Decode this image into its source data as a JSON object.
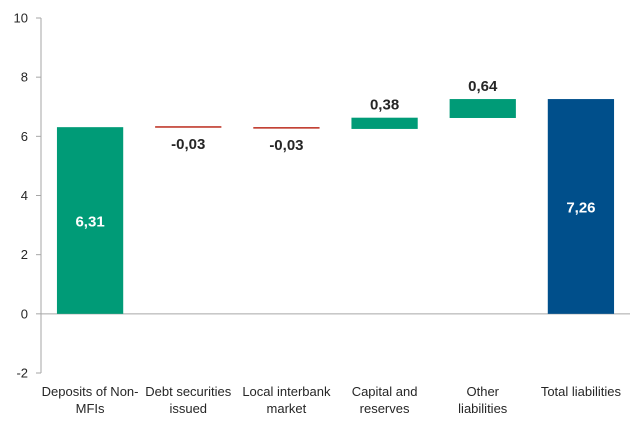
{
  "chart_data": {
    "type": "bar",
    "subtype": "waterfall",
    "categories": [
      [
        "Deposits of Non-",
        "MFIs"
      ],
      [
        "Debt securities",
        "issued"
      ],
      [
        "Local interbank",
        "market"
      ],
      [
        "Capital and",
        "reserves"
      ],
      [
        "Other",
        "liabilities"
      ],
      [
        "Total liabilities"
      ]
    ],
    "bars": [
      {
        "kind": "total",
        "base": 0,
        "value": 6.31,
        "label": "6,31",
        "color": "#009B77",
        "label_position": "inside"
      },
      {
        "kind": "change",
        "base": 6.31,
        "value": -0.03,
        "label": "-0,03",
        "color": "#C0392B",
        "label_position": "below"
      },
      {
        "kind": "change",
        "base": 6.28,
        "value": -0.03,
        "label": "-0,03",
        "color": "#C0392B",
        "label_position": "below"
      },
      {
        "kind": "change",
        "base": 6.25,
        "value": 0.38,
        "label": "0,38",
        "color": "#009B77",
        "label_position": "above"
      },
      {
        "kind": "change",
        "base": 6.62,
        "value": 0.64,
        "label": "0,64",
        "color": "#009B77",
        "label_position": "above"
      },
      {
        "kind": "total",
        "base": 0,
        "value": 7.26,
        "label": "7,26",
        "color": "#004F8B",
        "label_position": "inside"
      }
    ],
    "y_ticks": [
      {
        "value": -2,
        "label": "-2"
      },
      {
        "value": 0,
        "label": "0"
      },
      {
        "value": 2,
        "label": "2"
      },
      {
        "value": 4,
        "label": "4"
      },
      {
        "value": 6,
        "label": "6"
      },
      {
        "value": 8,
        "label": "8"
      },
      {
        "value": 10,
        "label": "10"
      }
    ],
    "ylim": [
      -2,
      10
    ],
    "title": "",
    "xlabel": "",
    "ylabel": "",
    "grid": false,
    "legend": "none",
    "colors": {
      "axis": "#A6A6A6",
      "tick_text": "#262626",
      "label_dark": "#262626",
      "label_light": "#FFFFFF"
    }
  }
}
